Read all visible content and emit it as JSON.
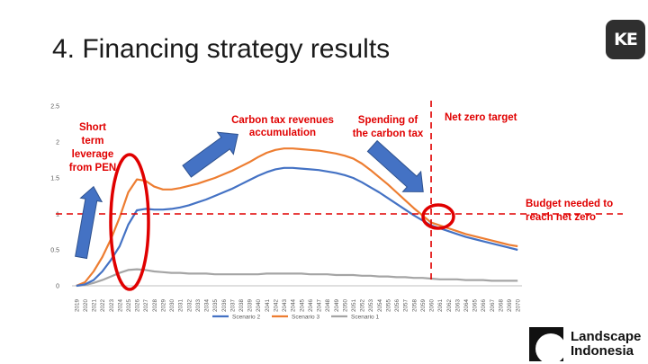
{
  "slide": {
    "title": "4. Financing strategy results",
    "logo_text": "KE"
  },
  "brand": {
    "line1": "Landscape",
    "line2": "Indonesia"
  },
  "chart_data": {
    "type": "line",
    "title": "",
    "xlabel": "",
    "ylabel": "",
    "x": [
      "2019",
      "2020",
      "2021",
      "2022",
      "2023",
      "2024",
      "2025",
      "2026",
      "2027",
      "2028",
      "2029",
      "2030",
      "2031",
      "2032",
      "2033",
      "2034",
      "2035",
      "2036",
      "2037",
      "2038",
      "2039",
      "2040",
      "2041",
      "2042",
      "2043",
      "2044",
      "2045",
      "2046",
      "2047",
      "2048",
      "2049",
      "2050",
      "2051",
      "2052",
      "2053",
      "2054",
      "2055",
      "2056",
      "2057",
      "2058",
      "2059",
      "2060",
      "2061",
      "2062",
      "2063",
      "2064",
      "2065",
      "2066",
      "2067",
      "2068",
      "2069",
      "2070"
    ],
    "ylim": [
      0,
      2.5
    ],
    "yticks": [
      "0",
      "0.5",
      "1",
      "1.5",
      "2",
      "2.5"
    ],
    "grid": false,
    "legend_position": "bottom",
    "series": [
      {
        "name": "Scenario 2",
        "color": "#4472C4",
        "values": [
          0,
          0.02,
          0.08,
          0.2,
          0.36,
          0.55,
          0.85,
          1.05,
          1.07,
          1.06,
          1.06,
          1.07,
          1.09,
          1.12,
          1.16,
          1.2,
          1.25,
          1.3,
          1.35,
          1.41,
          1.47,
          1.53,
          1.58,
          1.62,
          1.64,
          1.64,
          1.63,
          1.62,
          1.61,
          1.59,
          1.57,
          1.54,
          1.5,
          1.44,
          1.37,
          1.3,
          1.22,
          1.14,
          1.06,
          0.98,
          0.91,
          0.84,
          0.8,
          0.76,
          0.72,
          0.68,
          0.65,
          0.62,
          0.59,
          0.56,
          0.53,
          0.5
        ]
      },
      {
        "name": "Scenario 3",
        "color": "#ED7D31",
        "values": [
          0,
          0.05,
          0.2,
          0.4,
          0.65,
          0.95,
          1.3,
          1.48,
          1.46,
          1.38,
          1.34,
          1.34,
          1.36,
          1.39,
          1.42,
          1.46,
          1.5,
          1.55,
          1.6,
          1.66,
          1.72,
          1.79,
          1.85,
          1.89,
          1.91,
          1.91,
          1.9,
          1.89,
          1.88,
          1.86,
          1.84,
          1.81,
          1.77,
          1.7,
          1.61,
          1.51,
          1.41,
          1.3,
          1.19,
          1.08,
          0.98,
          0.88,
          0.84,
          0.8,
          0.76,
          0.72,
          0.69,
          0.66,
          0.63,
          0.6,
          0.57,
          0.55
        ]
      },
      {
        "name": "Scenario 1",
        "color": "#A5A5A5",
        "values": [
          0,
          0.01,
          0.04,
          0.08,
          0.13,
          0.18,
          0.22,
          0.23,
          0.22,
          0.2,
          0.19,
          0.18,
          0.18,
          0.17,
          0.17,
          0.17,
          0.16,
          0.16,
          0.16,
          0.16,
          0.16,
          0.16,
          0.17,
          0.17,
          0.17,
          0.17,
          0.17,
          0.16,
          0.16,
          0.16,
          0.15,
          0.15,
          0.15,
          0.14,
          0.14,
          0.13,
          0.13,
          0.12,
          0.12,
          0.11,
          0.11,
          0.1,
          0.09,
          0.09,
          0.09,
          0.08,
          0.08,
          0.08,
          0.07,
          0.07,
          0.07,
          0.07
        ]
      }
    ],
    "reference_lines": {
      "horizontal_y": 1,
      "vertical_x": "2060",
      "color": "#E00000"
    },
    "annotations": [
      {
        "name": "short-term-leverage",
        "lines": [
          "Short",
          "term",
          "leverage",
          "from PEN"
        ]
      },
      {
        "name": "carbon-tax-accumulation",
        "lines": [
          "Carbon tax revenues",
          "accumulation"
        ]
      },
      {
        "name": "carbon-tax-spending",
        "lines": [
          "Spending of",
          "the carbon tax"
        ]
      },
      {
        "name": "net-zero-target",
        "lines": [
          "Net zero target"
        ]
      },
      {
        "name": "budget-needed",
        "lines": [
          "Budget needed to",
          "reach  net zero"
        ]
      }
    ]
  }
}
